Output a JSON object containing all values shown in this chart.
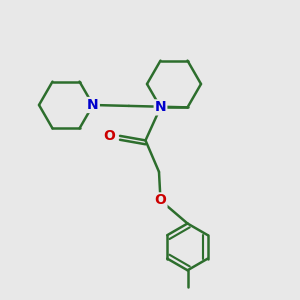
{
  "bg_color": "#e8e8e8",
  "bond_color": "#2d6e2d",
  "N_color": "#0000cc",
  "O_color": "#cc0000",
  "bond_width": 1.8,
  "font_size": 10,
  "fig_size": [
    3.0,
    3.0
  ],
  "dpi": 100,
  "xlim": [
    0,
    10
  ],
  "ylim": [
    0,
    10
  ]
}
